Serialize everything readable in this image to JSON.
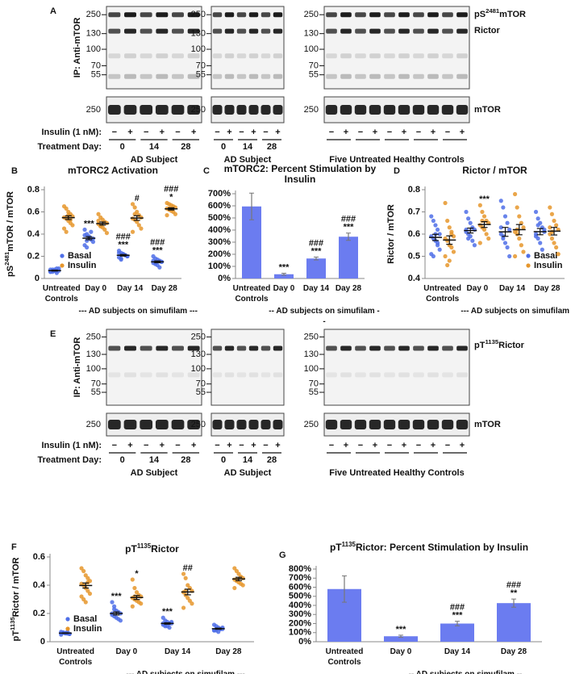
{
  "blot_a": {
    "panel_label": "A",
    "ip_label": "IP: Anti-mTOR",
    "mw_markers": [
      250,
      130,
      100,
      70,
      55
    ],
    "loading_mw": 250,
    "band_labels": [
      {
        "prefix": "pS",
        "superscript": "2481",
        "suffix": "mTOR"
      },
      "Rictor"
    ],
    "loading_label": "mTOR",
    "insulin_label": "Insulin (1 nM):",
    "treatment_label": "Treatment Day:",
    "signs": [
      "−",
      "+"
    ],
    "days": [
      "0",
      "14",
      "28"
    ],
    "subject_labels": [
      "AD Subject",
      "AD Subject",
      "Five Untreated Healthy Controls"
    ]
  },
  "blot_e": {
    "panel_label": "E",
    "ip_label": "IP: Anti-mTOR",
    "mw_markers": [
      250,
      130,
      100,
      70,
      55
    ],
    "loading_mw": 250,
    "band_labels": [
      {
        "prefix": "pT",
        "superscript": "1135",
        "suffix": "Rictor"
      }
    ],
    "loading_label": "mTOR",
    "insulin_label": "Insulin (1 nM):",
    "treatment_label": "Treatment Day:",
    "signs": [
      "−",
      "+"
    ],
    "days": [
      "0",
      "14",
      "28"
    ],
    "subject_labels": [
      "AD Subject",
      "AD Subject",
      "Five Untreated Healthy Controls"
    ]
  },
  "chart_data": [
    {
      "type": "dot",
      "panel_label": "B",
      "title": "mTORC2 Activation",
      "y_label": {
        "prefix": "pS",
        "superscript": "2481",
        "suffix": "mTOR / mTOR"
      },
      "x_label": "--- AD subjects on simufilam ---",
      "categories": [
        "Untreated Controls",
        "Day 0",
        "Day 14",
        "Day 28"
      ],
      "ylim": [
        0,
        0.8
      ],
      "yticks": [
        0,
        0.2,
        0.4,
        0.6,
        0.8
      ],
      "legend": "lower left",
      "series": [
        {
          "name": "Basal",
          "color": "#4f6fe8",
          "points": [
            [
              0.06,
              0.07,
              0.08,
              0.07,
              0.09,
              0.06,
              0.08,
              0.07,
              0.05,
              0.07,
              0.08,
              0.06,
              0.07,
              0.09
            ],
            [
              0.44,
              0.4,
              0.38,
              0.35,
              0.33,
              0.3,
              0.28,
              0.37,
              0.42,
              0.36,
              0.39,
              0.34
            ],
            [
              0.25,
              0.23,
              0.22,
              0.21,
              0.2,
              0.19,
              0.18,
              0.22,
              0.21,
              0.2,
              0.23,
              0.17
            ],
            [
              0.2,
              0.18,
              0.17,
              0.16,
              0.15,
              0.14,
              0.13,
              0.12,
              0.1,
              0.15,
              0.16,
              0.14
            ]
          ],
          "mean": [
            0.071,
            0.363,
            0.209,
            0.15
          ],
          "sem": [
            0.004,
            0.014,
            0.007,
            0.008
          ],
          "significance": [
            null,
            [
              "***"
            ],
            [
              "###",
              "***"
            ],
            [
              "###",
              "***"
            ]
          ]
        },
        {
          "name": "Insulin",
          "color": "#e6962c",
          "points": [
            [
              0.65,
              0.63,
              0.6,
              0.58,
              0.56,
              0.55,
              0.54,
              0.52,
              0.5,
              0.48,
              0.45,
              0.42,
              0.57,
              0.53
            ],
            [
              0.58,
              0.55,
              0.53,
              0.51,
              0.5,
              0.49,
              0.48,
              0.46,
              0.44,
              0.41,
              0.52,
              0.47
            ],
            [
              0.67,
              0.64,
              0.6,
              0.57,
              0.55,
              0.54,
              0.53,
              0.51,
              0.48,
              0.45,
              0.42,
              0.58
            ],
            [
              0.68,
              0.67,
              0.66,
              0.65,
              0.64,
              0.63,
              0.62,
              0.61,
              0.6,
              0.58,
              0.57,
              0.63
            ]
          ],
          "mean": [
            0.548,
            0.495,
            0.545,
            0.627
          ],
          "sem": [
            0.017,
            0.014,
            0.021,
            0.01
          ],
          "significance": [
            null,
            null,
            [
              "#"
            ],
            [
              "###",
              "*"
            ]
          ]
        }
      ]
    },
    {
      "type": "bar",
      "panel_label": "C",
      "title": "mTORC2: Percent Stimulation by Insulin",
      "x_label": "-- AD subjects on simufilam --",
      "categories": [
        "Untreated Controls",
        "Day 0",
        "Day 14",
        "Day 28"
      ],
      "values": [
        595,
        35,
        165,
        345
      ],
      "errors": [
        110,
        8,
        12,
        30
      ],
      "color": "#6b7cf0",
      "significance": [
        null,
        [
          "***"
        ],
        [
          "###",
          "***"
        ],
        [
          "###",
          "***"
        ]
      ],
      "ylim": [
        0,
        700
      ],
      "yticks": [
        {
          "value": 0,
          "label": "0%"
        },
        {
          "value": 100,
          "label": "100%"
        },
        {
          "value": 200,
          "label": "200%"
        },
        {
          "value": 300,
          "label": "300%"
        },
        {
          "value": 400,
          "label": "400%"
        },
        {
          "value": 500,
          "label": "500%"
        },
        {
          "value": 600,
          "label": "600%"
        },
        {
          "value": 700,
          "label": "700%"
        }
      ]
    },
    {
      "type": "dot",
      "panel_label": "D",
      "title": "Rictor / mTOR",
      "y_label": "Rictor / mTOR",
      "x_label": "--- AD subjects on simufilam ---",
      "categories": [
        "Untreated Controls",
        "Day 0",
        "Day 14",
        "Day 28"
      ],
      "ylim": [
        0.4,
        0.8
      ],
      "yticks": [
        0.4,
        0.5,
        0.6,
        0.7,
        0.8
      ],
      "legend": "lower right",
      "series": [
        {
          "name": "Basal",
          "color": "#4f6fe8",
          "points": [
            [
              0.68,
              0.66,
              0.64,
              0.62,
              0.6,
              0.59,
              0.58,
              0.57,
              0.55,
              0.53,
              0.51,
              0.5,
              0.6,
              0.56
            ],
            [
              0.7,
              0.67,
              0.65,
              0.63,
              0.62,
              0.61,
              0.6,
              0.59,
              0.57,
              0.55,
              0.62,
              0.58
            ],
            [
              0.75,
              0.72,
              0.68,
              0.65,
              0.62,
              0.6,
              0.58,
              0.56,
              0.54,
              0.5,
              0.63,
              0.59
            ],
            [
              0.7,
              0.67,
              0.65,
              0.63,
              0.61,
              0.6,
              0.58,
              0.56,
              0.53,
              0.62,
              0.59,
              0.64
            ]
          ],
          "mean": [
            0.585,
            0.616,
            0.61,
            0.611
          ],
          "sem": [
            0.014,
            0.011,
            0.02,
            0.014
          ],
          "significance": [
            null,
            null,
            null,
            null
          ]
        },
        {
          "name": "Insulin",
          "color": "#e6962c",
          "points": [
            [
              0.74,
              0.66,
              0.63,
              0.61,
              0.59,
              0.58,
              0.57,
              0.55,
              0.54,
              0.52,
              0.5,
              0.46,
              0.48,
              0.6
            ],
            [
              0.73,
              0.7,
              0.68,
              0.66,
              0.65,
              0.64,
              0.63,
              0.62,
              0.6,
              0.58,
              0.56,
              0.66
            ],
            [
              0.78,
              0.72,
              0.68,
              0.65,
              0.63,
              0.61,
              0.6,
              0.58,
              0.55,
              0.52,
              0.5,
              0.62
            ],
            [
              0.72,
              0.69,
              0.66,
              0.64,
              0.62,
              0.6,
              0.58,
              0.56,
              0.54,
              0.51,
              0.63,
              0.61
            ]
          ],
          "mean": [
            0.573,
            0.643,
            0.62,
            0.613
          ],
          "sem": [
            0.019,
            0.013,
            0.023,
            0.017
          ],
          "significance": [
            null,
            [
              "***"
            ],
            null,
            null
          ]
        }
      ]
    },
    {
      "type": "dot",
      "panel_label": "F",
      "title": {
        "prefix": "pT",
        "superscript": "1135",
        "suffix": "Rictor"
      },
      "y_label": {
        "prefix": "pT",
        "superscript": "1135",
        "suffix": "Rictor / mTOR"
      },
      "x_label": "--- AD subjects on simufilam ---",
      "categories": [
        "Untreated Controls",
        "Day 0",
        "Day 14",
        "Day 28"
      ],
      "ylim": [
        0,
        0.6
      ],
      "yticks": [
        0,
        0.2,
        0.4,
        0.6
      ],
      "legend": "lower left",
      "series": [
        {
          "name": "Basal",
          "color": "#4f6fe8",
          "points": [
            [
              0.07,
              0.065,
              0.06,
              0.06,
              0.055,
              0.05,
              0.065,
              0.06,
              0.07,
              0.055,
              0.06,
              0.065,
              0.06,
              0.058
            ],
            [
              0.28,
              0.25,
              0.22,
              0.21,
              0.2,
              0.19,
              0.18,
              0.17,
              0.16,
              0.15,
              0.2,
              0.23
            ],
            [
              0.17,
              0.15,
              0.14,
              0.13,
              0.13,
              0.12,
              0.12,
              0.11,
              0.1,
              0.14,
              0.13,
              0.11
            ],
            [
              0.12,
              0.11,
              0.1,
              0.09,
              0.09,
              0.08,
              0.08,
              0.07,
              0.09,
              0.1,
              0.08,
              0.09
            ]
          ],
          "mean": [
            0.061,
            0.2,
            0.129,
            0.092
          ],
          "sem": [
            0.002,
            0.011,
            0.005,
            0.004
          ],
          "significance": [
            null,
            [
              "***"
            ],
            [
              "***"
            ],
            null
          ]
        },
        {
          "name": "Insulin",
          "color": "#e6962c",
          "points": [
            [
              0.52,
              0.5,
              0.47,
              0.45,
              0.43,
              0.41,
              0.4,
              0.38,
              0.36,
              0.34,
              0.32,
              0.3,
              0.28,
              0.42
            ],
            [
              0.44,
              0.38,
              0.35,
              0.33,
              0.32,
              0.31,
              0.3,
              0.29,
              0.28,
              0.27,
              0.25,
              0.32
            ],
            [
              0.48,
              0.45,
              0.4,
              0.38,
              0.36,
              0.35,
              0.33,
              0.31,
              0.29,
              0.27,
              0.24,
              0.36
            ],
            [
              0.52,
              0.5,
              0.48,
              0.46,
              0.45,
              0.44,
              0.43,
              0.42,
              0.41,
              0.4,
              0.38,
              0.44
            ]
          ],
          "mean": [
            0.398,
            0.313,
            0.352,
            0.444
          ],
          "sem": [
            0.018,
            0.014,
            0.02,
            0.012
          ],
          "significance": [
            null,
            [
              "*"
            ],
            [
              "##"
            ],
            null
          ]
        }
      ]
    },
    {
      "type": "bar",
      "panel_label": "G",
      "title": {
        "prefix": "pT",
        "superscript": "1135",
        "suffix": "Rictor: Percent Stimulation by Insulin"
      },
      "x_label": "-- AD subjects on simufilam --",
      "categories": [
        "Untreated Controls",
        "Day 0",
        "Day 14",
        "Day 28"
      ],
      "values": [
        580,
        60,
        200,
        425
      ],
      "errors": [
        145,
        12,
        25,
        45
      ],
      "color": "#6b7cf0",
      "significance": [
        null,
        [
          "***"
        ],
        [
          "###",
          "***"
        ],
        [
          "###",
          "**"
        ]
      ],
      "ylim": [
        0,
        800
      ],
      "yticks": [
        {
          "value": 0,
          "label": "0%"
        },
        {
          "value": 100,
          "label": "100%"
        },
        {
          "value": 200,
          "label": "200%"
        },
        {
          "value": 300,
          "label": "300%"
        },
        {
          "value": 400,
          "label": "400%"
        },
        {
          "value": 500,
          "label": "500%"
        },
        {
          "value": 600,
          "label": "600%"
        },
        {
          "value": 700,
          "label": "700%"
        },
        {
          "value": 800,
          "label": "800%"
        }
      ]
    }
  ]
}
